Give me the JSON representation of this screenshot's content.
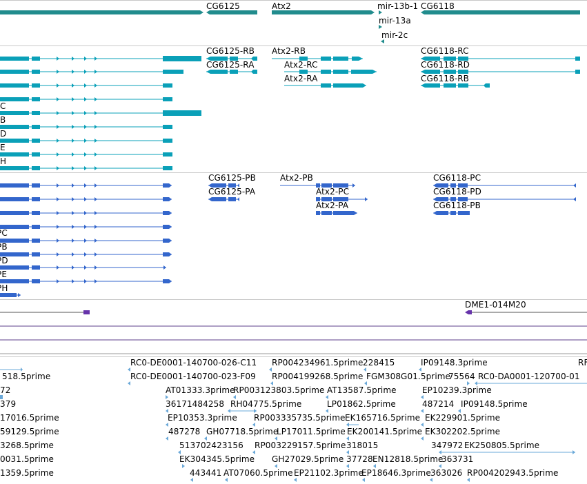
{
  "colors": {
    "gene": "#218c8d",
    "mrna": "#0aa0b8",
    "protein": "#3366cc",
    "clone": "#6633aa",
    "est": "#6aa8d8",
    "line_purple": "#5b3d8a"
  },
  "tracks": {
    "genes": {
      "labels": [
        "CG6125",
        "Atx2",
        "mir-13b-1",
        "CG6118",
        "mir-13a",
        "mir-2c"
      ]
    },
    "transcripts": {
      "labels": [
        "CG6125-RB",
        "CG6125-RA",
        "Atx2-RB",
        "Atx2-RC",
        "Atx2-RA",
        "CG6118-RC",
        "CG6118-RD",
        "CG6118-RB"
      ],
      "left_clipped": [
        "C",
        "B",
        "D",
        "E",
        "H"
      ]
    },
    "proteins": {
      "labels": [
        "CG6125-PB",
        "CG6125-PA",
        "Atx2-PB",
        "Atx2-PC",
        "Atx2-PA",
        "CG6118-PC",
        "CG6118-PD",
        "CG6118-PB"
      ],
      "left_clipped": [
        "PC",
        "PB",
        "PD",
        "PE",
        "PH"
      ]
    },
    "clones": {
      "labels": [
        "DME1-014M20"
      ]
    },
    "ests": {
      "labels": [
        "RC0-DE0001-140700-026-C11",
        "RP004234961.5prime",
        "228415",
        "IP09148.3prime",
        "RF",
        "518.5prime",
        "RC0-DE0001-140700-023-F09",
        "RP004199268.5prime",
        "FGM308G01.5prime",
        "75564",
        "RC0-DA0001-120700-01",
        "72",
        "AT01333.3prime",
        "RP003123803.5prime",
        "AT13587.5prime",
        "EP10239.3prime",
        "379",
        "36171484258",
        "RH04775.5prime",
        "LP01862.5prime",
        "487214",
        "IP09148.5prime",
        "17016.5prime",
        "EP10353.3prime",
        "RP003335735.5prime",
        "EK165716.5prime",
        "EK229901.5prime",
        "59129.5prime",
        "487278",
        "GH07718.5prime",
        "LP17011.5prime",
        "EK200141.5prime",
        "EK302202.5prime",
        "3268.5prime",
        "513702423156",
        "RP003229157.5prime",
        "318015",
        "347972",
        "EK250805.5prime",
        "0031.5prime",
        "EK304345.5prime",
        "GH27029.5prime",
        "37728",
        "EN12818.5prime",
        "363731",
        "1359.5prime",
        "443441",
        "AT07060.5prime",
        "EP21102.3prime",
        "EP18646.3prime",
        "363026",
        "RP004202943.5prime"
      ]
    }
  }
}
